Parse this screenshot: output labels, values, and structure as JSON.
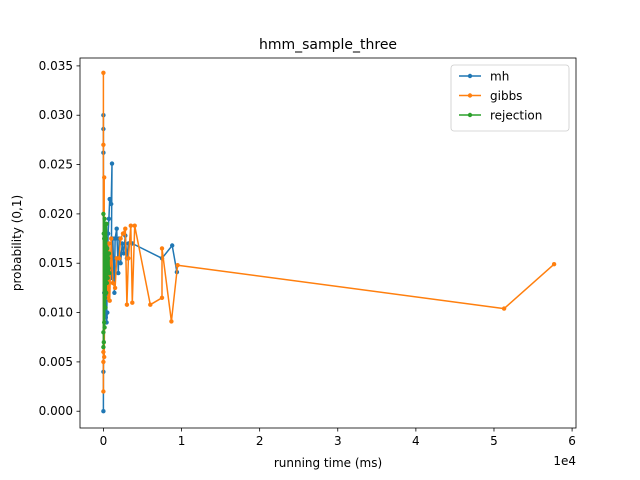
{
  "chart_data": {
    "type": "line",
    "title": "hmm_sample_three",
    "xlabel": "running time (ms)",
    "ylabel": "probability (0,1)",
    "x_offset_text": "1e4",
    "xlim": [
      -3000,
      60500
    ],
    "ylim": [
      -0.0017,
      0.0358
    ],
    "xticks": [
      0,
      10000,
      20000,
      30000,
      40000,
      50000,
      60000
    ],
    "xtick_labels": [
      "0",
      "1",
      "2",
      "3",
      "4",
      "5",
      "6"
    ],
    "yticks": [
      0.0,
      0.005,
      0.01,
      0.015,
      0.02,
      0.025,
      0.03,
      0.035
    ],
    "ytick_labels": [
      "0.000",
      "0.005",
      "0.010",
      "0.015",
      "0.020",
      "0.025",
      "0.030",
      "0.035"
    ],
    "legend_position": "top-right",
    "series": [
      {
        "name": "mh",
        "color": "#1f77b4",
        "points": [
          [
            0,
            0.0
          ],
          [
            0,
            0.0286
          ],
          [
            0,
            0.0262
          ],
          [
            0,
            0.03
          ],
          [
            0,
            0.004
          ],
          [
            100,
            0.012
          ],
          [
            200,
            0.0165
          ],
          [
            300,
            0.0095
          ],
          [
            500,
            0.01
          ],
          [
            400,
            0.009
          ],
          [
            600,
            0.018
          ],
          [
            700,
            0.0195
          ],
          [
            800,
            0.0215
          ],
          [
            1000,
            0.021
          ],
          [
            1100,
            0.0251
          ],
          [
            1000,
            0.0135
          ],
          [
            1200,
            0.0175
          ],
          [
            1400,
            0.012
          ],
          [
            1500,
            0.0175
          ],
          [
            1700,
            0.0185
          ],
          [
            1900,
            0.014
          ],
          [
            2000,
            0.0175
          ],
          [
            2200,
            0.015
          ],
          [
            2400,
            0.017
          ],
          [
            2600,
            0.016
          ],
          [
            2800,
            0.0178
          ],
          [
            3000,
            0.0155
          ],
          [
            3200,
            0.017
          ],
          [
            3700,
            0.017
          ],
          [
            7500,
            0.0155
          ],
          [
            8800,
            0.0168
          ],
          [
            9400,
            0.0141
          ]
        ]
      },
      {
        "name": "gibbs",
        "color": "#ff7f0e",
        "points": [
          [
            0,
            0.005
          ],
          [
            0,
            0.0343
          ],
          [
            0,
            0.002
          ],
          [
            0,
            0.027
          ],
          [
            0,
            0.006
          ],
          [
            100,
            0.0237
          ],
          [
            100,
            0.0055
          ],
          [
            200,
            0.0145
          ],
          [
            300,
            0.0125
          ],
          [
            500,
            0.0135
          ],
          [
            600,
            0.0115
          ],
          [
            700,
            0.017
          ],
          [
            800,
            0.0112
          ],
          [
            1000,
            0.0175
          ],
          [
            1200,
            0.013
          ],
          [
            1500,
            0.0125
          ],
          [
            1700,
            0.0155
          ],
          [
            2000,
            0.0155
          ],
          [
            2200,
            0.0175
          ],
          [
            2500,
            0.018
          ],
          [
            2800,
            0.0185
          ],
          [
            3000,
            0.0108
          ],
          [
            3200,
            0.0155
          ],
          [
            3500,
            0.0188
          ],
          [
            3700,
            0.011
          ],
          [
            4000,
            0.0188
          ],
          [
            6000,
            0.0108
          ],
          [
            7500,
            0.0115
          ],
          [
            7500,
            0.0165
          ],
          [
            8700,
            0.0091
          ],
          [
            9500,
            0.0148
          ],
          [
            51300,
            0.0104
          ],
          [
            57700,
            0.0149
          ]
        ]
      },
      {
        "name": "rejection",
        "color": "#2ca02c",
        "points": [
          [
            0,
            0.0065
          ],
          [
            0,
            0.02
          ],
          [
            0,
            0.008
          ],
          [
            50,
            0.018
          ],
          [
            50,
            0.007
          ],
          [
            100,
            0.0175
          ],
          [
            100,
            0.009
          ],
          [
            150,
            0.0195
          ],
          [
            150,
            0.0085
          ],
          [
            200,
            0.016
          ],
          [
            200,
            0.0115
          ],
          [
            250,
            0.019
          ],
          [
            250,
            0.0105
          ],
          [
            300,
            0.0175
          ],
          [
            350,
            0.0145
          ],
          [
            350,
            0.012
          ],
          [
            400,
            0.019
          ],
          [
            450,
            0.013
          ],
          [
            500,
            0.0165
          ],
          [
            550,
            0.0135
          ],
          [
            600,
            0.0155
          ],
          [
            650,
            0.0145
          ],
          [
            700,
            0.016
          ],
          [
            750,
            0.014
          ]
        ]
      }
    ]
  }
}
